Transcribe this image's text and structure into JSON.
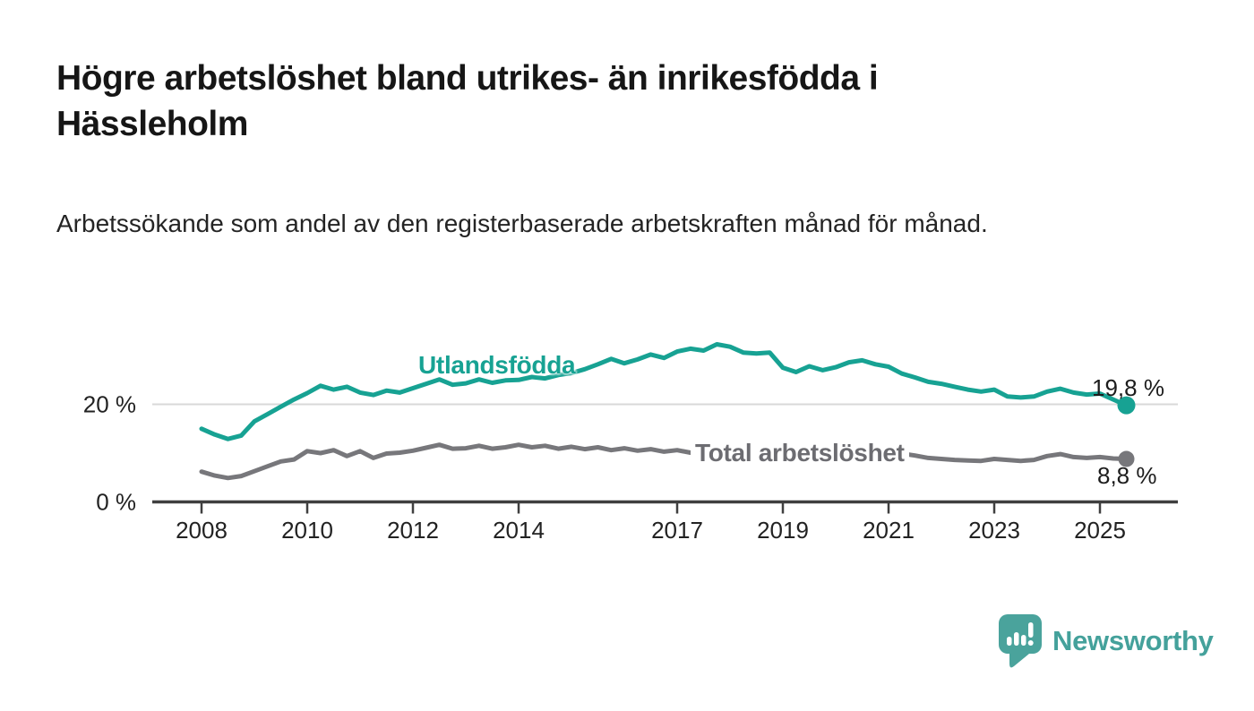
{
  "chart_data": {
    "type": "line",
    "title": "Högre arbetslöshet bland utrikes- än inrikesfödda i Hässleholm",
    "subtitle": "Arbetssökande som andel av den registerbaserade arbetskraften månad för månad.",
    "y_unit": "%",
    "x": [
      2008.0,
      2008.25,
      2008.5,
      2008.75,
      2009.0,
      2009.25,
      2009.5,
      2009.75,
      2010.0,
      2010.25,
      2010.5,
      2010.75,
      2011.0,
      2011.25,
      2011.5,
      2011.75,
      2012.0,
      2012.25,
      2012.5,
      2012.75,
      2013.0,
      2013.25,
      2013.5,
      2013.75,
      2014.0,
      2014.25,
      2014.5,
      2014.75,
      2015.0,
      2015.25,
      2015.5,
      2015.75,
      2016.0,
      2016.25,
      2016.5,
      2016.75,
      2017.0,
      2017.25,
      2017.5,
      2017.75,
      2018.0,
      2018.25,
      2018.5,
      2018.75,
      2019.0,
      2019.25,
      2019.5,
      2019.75,
      2020.0,
      2020.25,
      2020.5,
      2020.75,
      2021.0,
      2021.25,
      2021.5,
      2021.75,
      2022.0,
      2022.25,
      2022.5,
      2022.75,
      2023.0,
      2023.25,
      2023.5,
      2023.75,
      2024.0,
      2024.25,
      2024.5,
      2024.75,
      2025.0,
      2025.25,
      2025.5
    ],
    "series": [
      {
        "name": "Utlandsfödda",
        "color": "#17a293",
        "label_color": "#17a293",
        "end_label": "19,8 %",
        "last_value": 19.8,
        "values": [
          15.0,
          13.8,
          12.9,
          13.6,
          16.5,
          18.0,
          19.5,
          21.0,
          22.3,
          23.8,
          23.0,
          23.6,
          22.4,
          21.9,
          22.8,
          22.4,
          23.3,
          24.2,
          25.1,
          24.0,
          24.3,
          25.1,
          24.4,
          24.9,
          25.0,
          25.6,
          25.3,
          26.0,
          26.4,
          27.2,
          28.2,
          29.3,
          28.4,
          29.2,
          30.2,
          29.5,
          30.8,
          31.4,
          31.0,
          32.3,
          31.8,
          30.6,
          30.4,
          30.6,
          27.5,
          26.6,
          27.8,
          27.0,
          27.6,
          28.6,
          29.0,
          28.2,
          27.7,
          26.3,
          25.5,
          24.6,
          24.2,
          23.6,
          23.0,
          22.6,
          23.0,
          21.6,
          21.4,
          21.6,
          22.6,
          23.2,
          22.4,
          22.0,
          22.2,
          21.0,
          19.8
        ]
      },
      {
        "name": "Total arbetslöshet",
        "color": "#77777b",
        "label_color": "#6c6c71",
        "end_label": "8,8 %",
        "last_value": 8.8,
        "values": [
          6.2,
          5.4,
          4.9,
          5.3,
          6.3,
          7.3,
          8.3,
          8.7,
          10.4,
          10.0,
          10.6,
          9.4,
          10.4,
          9.0,
          9.9,
          10.1,
          10.5,
          11.1,
          11.7,
          10.9,
          11.0,
          11.5,
          10.9,
          11.2,
          11.7,
          11.2,
          11.5,
          10.9,
          11.3,
          10.8,
          11.2,
          10.6,
          11.0,
          10.5,
          10.8,
          10.3,
          10.6,
          10.1,
          10.0,
          9.7,
          9.8,
          9.4,
          9.3,
          9.5,
          9.6,
          9.2,
          9.4,
          9.6,
          10.0,
          10.8,
          11.0,
          10.6,
          10.4,
          9.9,
          9.5,
          9.0,
          8.8,
          8.6,
          8.5,
          8.4,
          8.8,
          8.6,
          8.4,
          8.6,
          9.4,
          9.8,
          9.2,
          9.0,
          9.2,
          8.9,
          8.8
        ]
      }
    ],
    "axis": {
      "x_ticks": [
        2008,
        2010,
        2012,
        2014,
        2017,
        2019,
        2021,
        2023,
        2025
      ],
      "y_ticks": [
        {
          "value": 20,
          "label": "20 %"
        },
        {
          "value": 0,
          "label": "0 %"
        }
      ],
      "ylim": [
        0,
        36
      ],
      "grid": "horizontal-20-only"
    },
    "legend_position": "inline-labels",
    "colors": {
      "grid": "#d8d8d8",
      "axis": "#3f3f3f",
      "tick_text": "#222222"
    }
  },
  "footer": {
    "brand": "Newsworthy",
    "brand_color": "#44a19b"
  }
}
